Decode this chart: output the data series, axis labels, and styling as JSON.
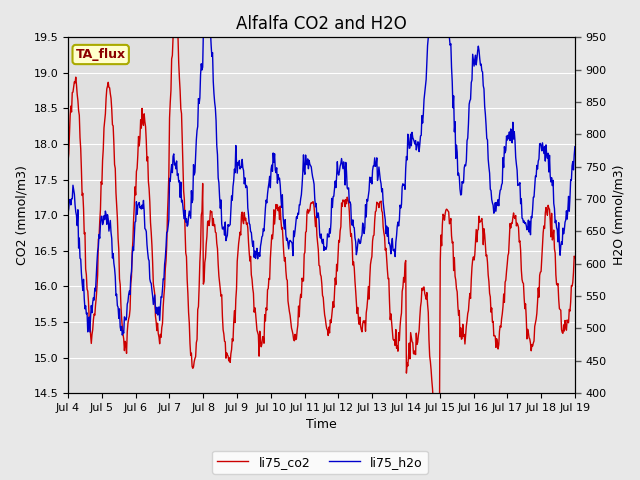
{
  "title": "Alfalfa CO2 and H2O",
  "xlabel": "Time",
  "ylabel_left": "CO2 (mmol/m3)",
  "ylabel_right": "H2O (mmol/m3)",
  "legend_label_co2": "li75_co2",
  "legend_label_h2o": "li75_h2o",
  "annotation_text": "TA_flux",
  "annotation_bbox_facecolor": "#ffffcc",
  "annotation_bbox_edgecolor": "#aaaa00",
  "co2_color": "#cc0000",
  "h2o_color": "#0000cc",
  "ylim_left": [
    14.5,
    19.5
  ],
  "ylim_right": [
    400,
    950
  ],
  "yticks_left": [
    14.5,
    15.0,
    15.5,
    16.0,
    16.5,
    17.0,
    17.5,
    18.0,
    18.5,
    19.0,
    19.5
  ],
  "yticks_right": [
    400,
    450,
    500,
    550,
    600,
    650,
    700,
    750,
    800,
    850,
    900,
    950
  ],
  "xtick_labels": [
    "Jul 4",
    "Jul 5",
    "Jul 6",
    "Jul 7",
    "Jul 8",
    "Jul 9",
    "Jul 10",
    "Jul 11",
    "Jul 12",
    "Jul 13",
    "Jul 14",
    "Jul 15",
    "Jul 16",
    "Jul 17",
    "Jul 18",
    "Jul 19"
  ],
  "background_color": "#e8e8e8",
  "plot_bg_color": "#e0e0e0",
  "grid_color": "#ffffff",
  "figsize": [
    6.4,
    4.8
  ],
  "dpi": 100,
  "title_fontsize": 12,
  "axis_label_fontsize": 9,
  "tick_fontsize": 8,
  "legend_fontsize": 9,
  "annotation_fontsize": 9
}
